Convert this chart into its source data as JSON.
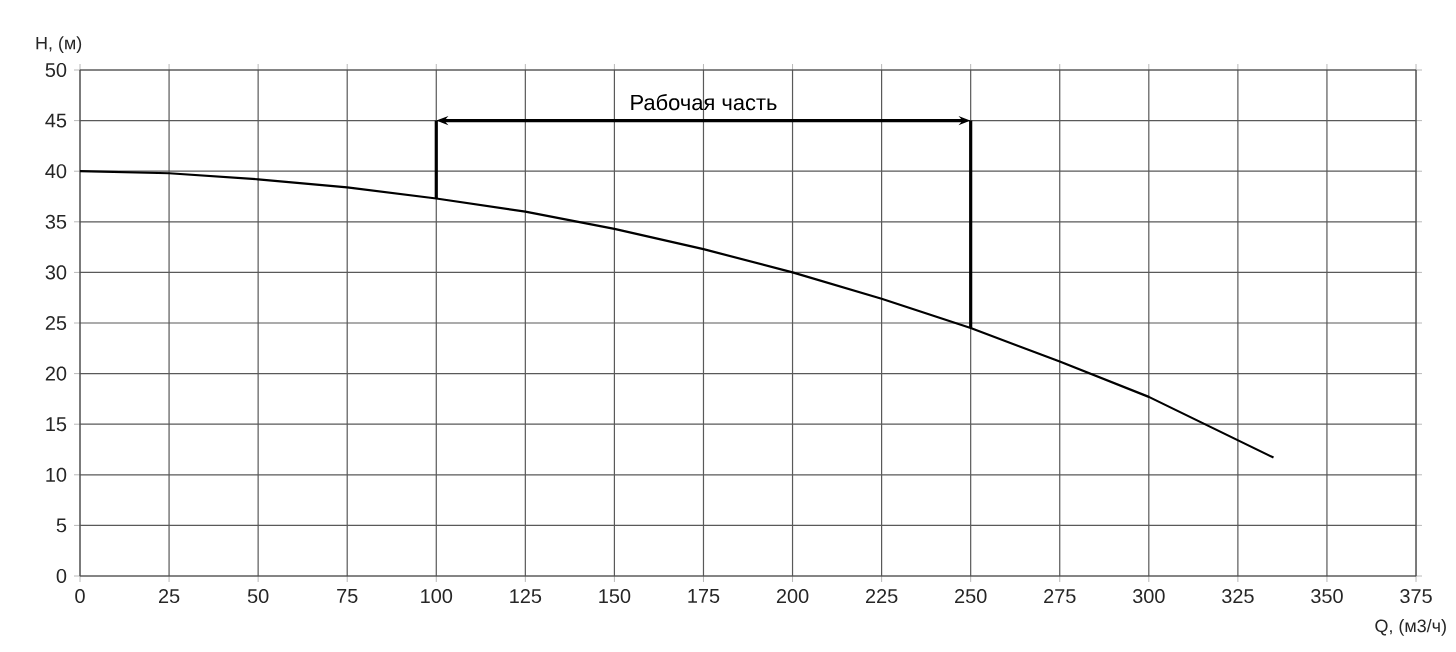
{
  "chart_data": {
    "type": "line",
    "xlabel": "Q, (м3/ч)",
    "ylabel": "H, (м)",
    "x": [
      0,
      25,
      50,
      75,
      100,
      125,
      150,
      175,
      200,
      225,
      250,
      275,
      300,
      335
    ],
    "series": [
      {
        "color": "#000000",
        "values": [
          40,
          39.8,
          39.2,
          38.4,
          37.3,
          36,
          34.3,
          32.3,
          30,
          27.4,
          24.5,
          21.2,
          17.7,
          11.7
        ]
      }
    ],
    "xlim": [
      0,
      375
    ],
    "ylim": [
      0,
      50
    ],
    "xticks": [
      0,
      25,
      50,
      75,
      100,
      125,
      150,
      175,
      200,
      225,
      250,
      275,
      300,
      325,
      350,
      375
    ],
    "yticks": [
      0,
      5,
      10,
      15,
      20,
      25,
      30,
      35,
      40,
      45,
      50
    ],
    "grid": true,
    "marker": "none",
    "line_style": "solid",
    "ref_lines": [
      {
        "axis": "x",
        "value": 100,
        "color": "#000000"
      },
      {
        "axis": "x",
        "value": 250,
        "color": "#000000"
      }
    ],
    "annotations": [
      "Рабочая часть"
    ]
  }
}
